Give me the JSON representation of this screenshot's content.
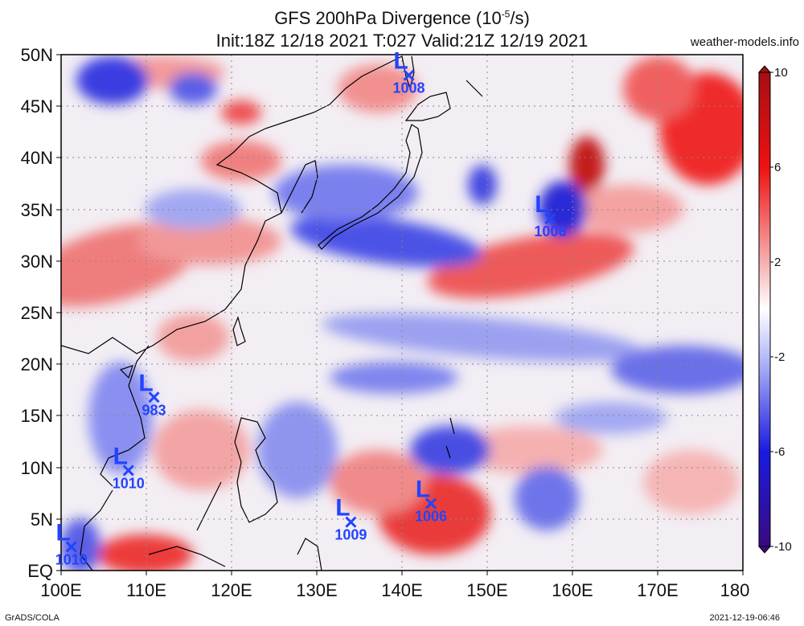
{
  "header": {
    "title_main": "GFS 200hPa Divergence (10",
    "title_exp": "-5",
    "title_unit": "/s)",
    "subtitle": "Init:18Z 12/18 2021 T:027 Valid:21Z 12/19 2021",
    "brand": "weather-models.info"
  },
  "footer": {
    "left": "GrADS/COLA",
    "right": "2021-12-19-06:46"
  },
  "map": {
    "lat_range": [
      0,
      50
    ],
    "lon_range": [
      100,
      180
    ],
    "lat_labels": [
      "50N",
      "45N",
      "40N",
      "35N",
      "30N",
      "25N",
      "20N",
      "15N",
      "10N",
      "5N",
      "EQ"
    ],
    "lon_labels": [
      "100E",
      "110E",
      "120E",
      "130E",
      "140E",
      "150E",
      "160E",
      "170E",
      "180"
    ],
    "colorbar": {
      "min": -10,
      "max": 10,
      "labels": [
        "10",
        "6",
        "2",
        "-2",
        "-6",
        "-10"
      ],
      "high_color": "#cc0000",
      "low_color": "#0000cc"
    },
    "lows": [
      {
        "lon": 140.8,
        "lat": 48.0,
        "value": "1008"
      },
      {
        "lon": 157.4,
        "lat": 34.1,
        "value": "1006"
      },
      {
        "lon": 110.9,
        "lat": 16.8,
        "value": "983"
      },
      {
        "lon": 107.9,
        "lat": 9.7,
        "value": "1010"
      },
      {
        "lon": 143.4,
        "lat": 6.5,
        "value": "1006"
      },
      {
        "lon": 134.0,
        "lat": 4.7,
        "value": "1009"
      },
      {
        "lon": 101.2,
        "lat": 2.3,
        "value": "1010"
      }
    ]
  }
}
